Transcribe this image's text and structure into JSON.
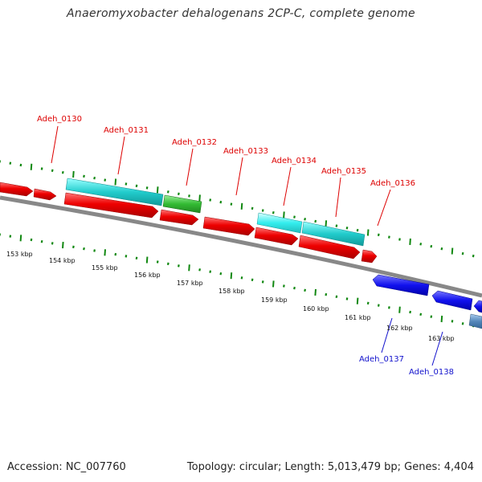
{
  "title": "Anaeromyxobacter dehalogenans 2CP-C, complete genome",
  "footer": {
    "accession": "Accession: NC_007760",
    "summary": "Topology: circular; Length: 5,013,479 bp; Genes: 4,404"
  },
  "colors": {
    "backbone": "#888888",
    "tick": "#118811",
    "forward_label": "#dd0000",
    "reverse_label": "#1111cc"
  },
  "scale_labels": [
    "153 kbp",
    "154 kbp",
    "155 kbp",
    "156 kbp",
    "157 kbp",
    "158 kbp",
    "159 kbp",
    "160 kbp",
    "161 kbp",
    "162 kbp",
    "163 kbp"
  ],
  "gene_labels": [
    {
      "text": "Adeh_0130",
      "strand": "forward"
    },
    {
      "text": "Adeh_0131",
      "strand": "forward"
    },
    {
      "text": "Adeh_0132",
      "strand": "forward"
    },
    {
      "text": "Adeh_0133",
      "strand": "forward"
    },
    {
      "text": "Adeh_0134",
      "strand": "forward"
    },
    {
      "text": "Adeh_0135",
      "strand": "forward"
    },
    {
      "text": "Adeh_0136",
      "strand": "forward"
    },
    {
      "text": "Adeh_0137",
      "strand": "reverse"
    },
    {
      "text": "Adeh_0138",
      "strand": "reverse"
    }
  ]
}
